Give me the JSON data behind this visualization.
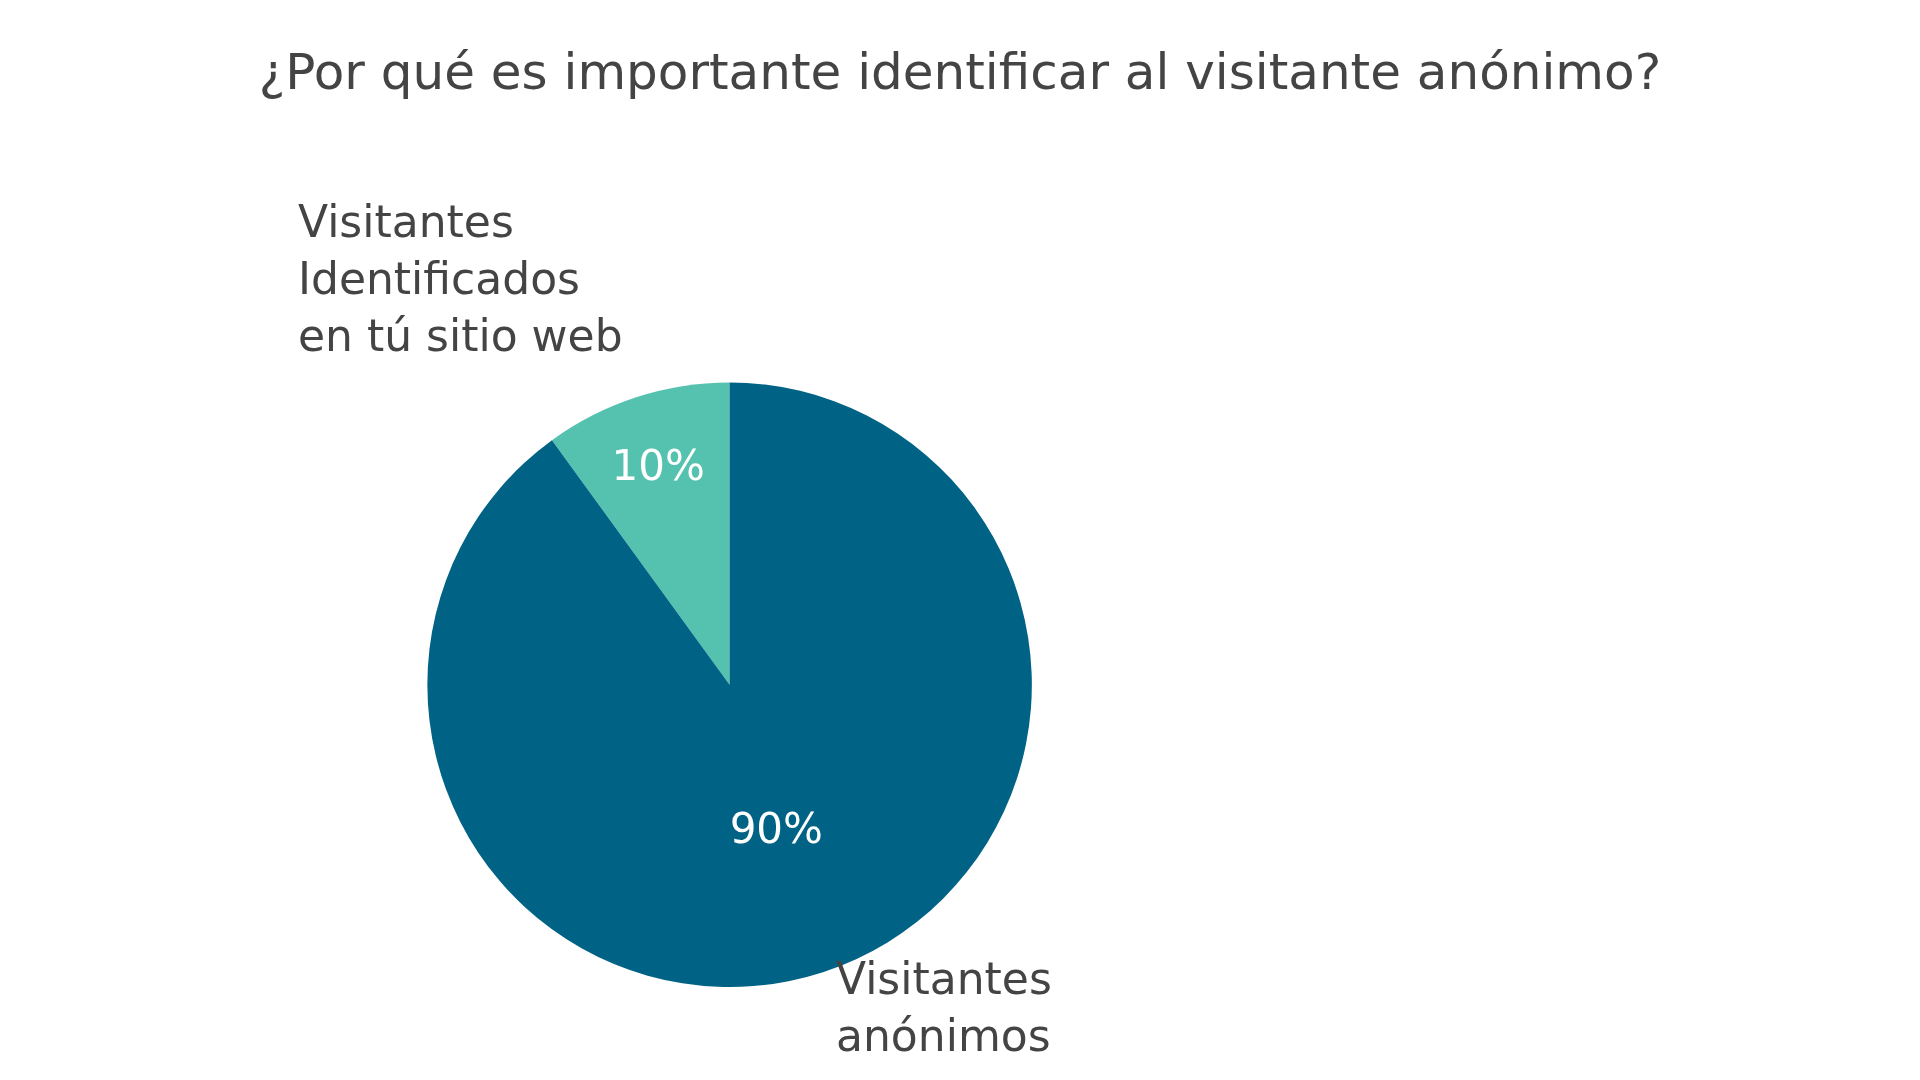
{
  "chart_data": {
    "type": "pie",
    "title": "¿Por qué es importante identificar al visitante anónimo?",
    "categories": [
      "Visitantes Identificados en tú sitio web",
      "Visitantes anónimos"
    ],
    "values": [
      10,
      90
    ],
    "value_labels": [
      "10%",
      "90%"
    ],
    "colors": [
      "#55c2b0",
      "#006385"
    ]
  }
}
